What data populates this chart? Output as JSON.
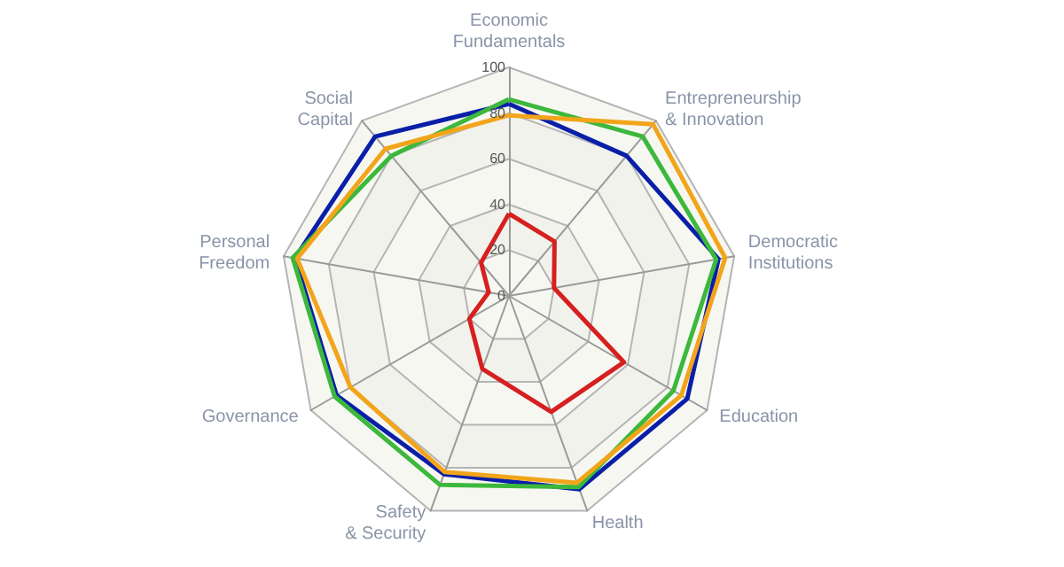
{
  "chart_data": {
    "type": "radar",
    "categories": [
      "Economic\nFundamentals",
      "Entrepreneurship\n& Innovation",
      "Democratic\nInstitutions",
      "Education",
      "Health",
      "Safety\n& Security",
      "Governance",
      "Personal\nFreedom",
      "Social\nCapital"
    ],
    "series": [
      {
        "color": "#0a1fa8",
        "values": [
          84,
          80,
          93,
          90,
          90,
          83,
          87,
          95,
          91
        ]
      },
      {
        "color": "#3cb83c",
        "values": [
          86,
          91,
          92,
          83,
          89,
          88,
          88,
          96,
          80
        ]
      },
      {
        "color": "#f2a51a",
        "values": [
          79,
          98,
          96,
          87,
          87,
          82,
          80,
          94,
          84
        ]
      },
      {
        "color": "#d62020",
        "values": [
          36,
          31,
          20,
          58,
          54,
          34,
          20,
          9,
          19
        ]
      }
    ],
    "ylim": [
      0,
      100
    ],
    "yticks": [
      0,
      20,
      40,
      60,
      80,
      100
    ],
    "grid": true,
    "marker": "none",
    "line_style": "solid"
  }
}
